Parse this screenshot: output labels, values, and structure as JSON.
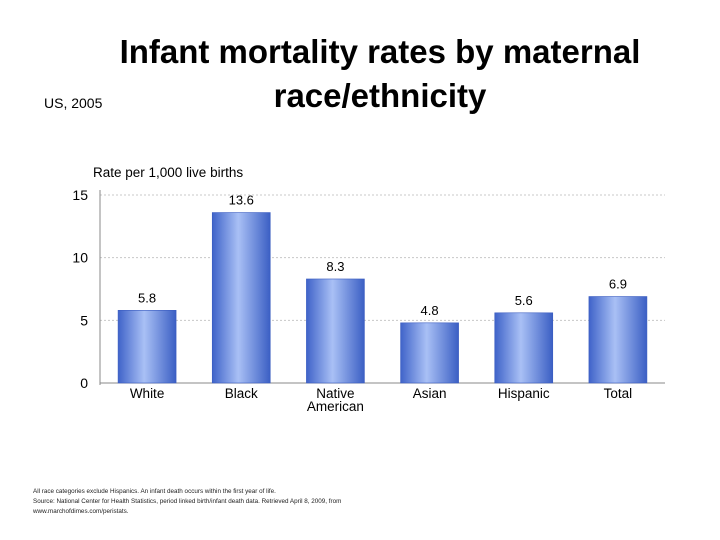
{
  "slide": {
    "title_line1": "Infant mortality rates by maternal",
    "title_line2": "race/ethnicity",
    "subtitle": "US, 2005"
  },
  "chart_data": {
    "type": "bar",
    "ylabel": "Rate per 1,000 live births",
    "xlabel": "",
    "ylim": [
      0,
      15
    ],
    "yticks": [
      0,
      5,
      10,
      15
    ],
    "categories": [
      [
        "White"
      ],
      [
        "Black"
      ],
      [
        "Native",
        "American"
      ],
      [
        "Asian"
      ],
      [
        "Hispanic"
      ],
      [
        "Total"
      ]
    ],
    "values": [
      5.8,
      13.6,
      8.3,
      4.8,
      5.6,
      6.9
    ],
    "value_labels": [
      "5.8",
      "13.6",
      "8.3",
      "4.8",
      "5.6",
      "6.9"
    ],
    "grid": true,
    "bar_color": "#5f82de",
    "bar_highlight": "#9cb4f2"
  },
  "footnote": {
    "line1": "All race categories exclude Hispanics. An infant death occurs within the first year of life.",
    "line2": "Source: National Center for Health Statistics, period linked birth/infant death data. Retrieved April 8, 2009, from",
    "line3": "www.marchofdimes.com/peristats."
  }
}
